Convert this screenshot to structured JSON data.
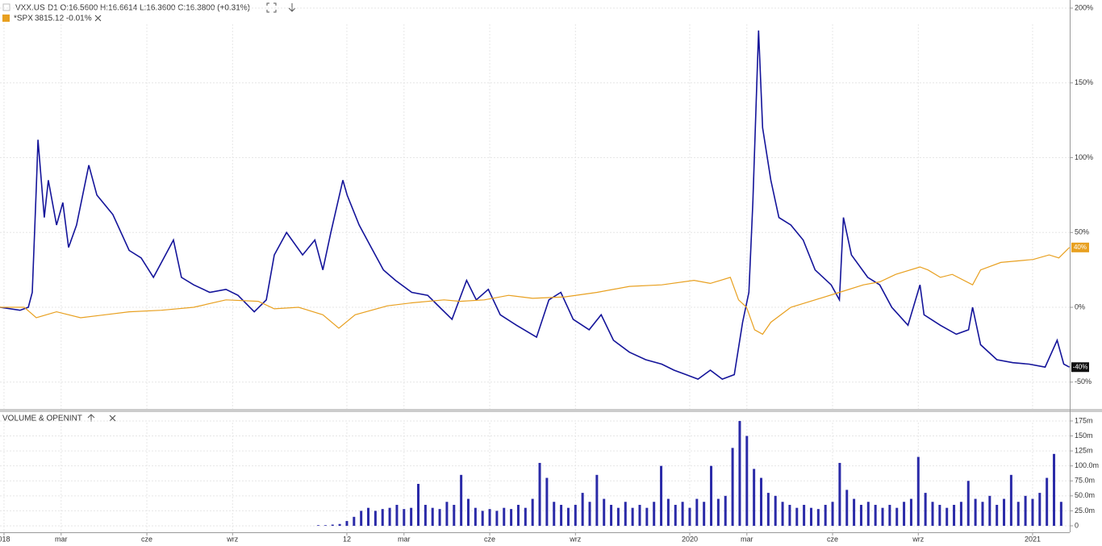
{
  "chart_data": [
    {
      "type": "line",
      "xlim": [
        -0.14,
        37.3
      ],
      "ylim": [
        -67.9,
        205.4
      ],
      "yticks": [
        {
          "value": 200,
          "label": "200%"
        },
        {
          "value": 150,
          "label": "150%"
        },
        {
          "value": 100,
          "label": "100%"
        },
        {
          "value": 50,
          "label": "50%"
        },
        {
          "value": 0,
          "label": "0%"
        },
        {
          "value": -50,
          "label": "-50%"
        }
      ],
      "grid": true,
      "series": [
        {
          "name": "VXX.US",
          "info": "D1  O:16.5600  H:16.6614  L:16.3600  C:16.3800  (+0.31%)",
          "color": "#14149a",
          "end_label": "-40%",
          "x": [
            -0.14,
            0.56,
            0.85,
            0.99,
            1.13,
            1.19,
            1.41,
            1.55,
            1.84,
            2.06,
            2.26,
            2.54,
            2.97,
            3.25,
            3.81,
            4.38,
            4.8,
            5.23,
            5.65,
            5.93,
            6.21,
            6.64,
            7.2,
            7.77,
            8.19,
            8.76,
            9.18,
            9.46,
            9.89,
            10.45,
            10.88,
            11.16,
            11.44,
            11.86,
            12.01,
            12.43,
            12.85,
            13.28,
            13.7,
            14.27,
            14.83,
            15.25,
            15.68,
            16.19,
            16.53,
            16.95,
            17.37,
            17.94,
            18.64,
            19.07,
            19.49,
            19.92,
            20.48,
            20.9,
            21.33,
            21.89,
            22.46,
            23.02,
            23.45,
            23.87,
            24.29,
            24.72,
            25.14,
            25.56,
            25.85,
            26.07,
            26.21,
            26.41,
            26.55,
            26.84,
            27.12,
            27.54,
            27.97,
            28.39,
            28.95,
            29.24,
            29.38,
            29.66,
            30.23,
            30.65,
            31.07,
            31.64,
            32.06,
            32.2,
            32.77,
            33.33,
            33.76,
            33.9,
            34.18,
            34.75,
            35.31,
            35.88,
            36.44,
            36.86,
            37.09,
            37.29
          ],
          "values": [
            0,
            -2,
            0,
            10,
            80,
            112,
            60,
            85,
            55,
            70,
            40,
            55,
            95,
            75,
            62,
            38,
            33,
            20,
            35,
            45,
            20,
            15,
            10,
            12,
            8,
            -3,
            5,
            35,
            50,
            35,
            45,
            25,
            50,
            85,
            75,
            55,
            40,
            25,
            18,
            10,
            8,
            0,
            -8,
            18,
            5,
            12,
            -5,
            -12,
            -20,
            5,
            10,
            -8,
            -15,
            -5,
            -22,
            -30,
            -35,
            -38,
            -42,
            -45,
            -48,
            -42,
            -48,
            -45,
            -10,
            10,
            70,
            185,
            120,
            85,
            60,
            55,
            45,
            25,
            15,
            5,
            60,
            35,
            20,
            15,
            0,
            -12,
            15,
            -5,
            -12,
            -18,
            -15,
            0,
            -25,
            -35,
            -37,
            -38,
            -40,
            -22,
            -38,
            -40
          ]
        },
        {
          "name": "*SPX",
          "info": "3815.12  -0.01%",
          "color": "#e8a020",
          "end_label": "40%",
          "x": [
            -0.14,
            0.71,
            1.13,
            1.84,
            2.68,
            3.53,
            4.38,
            5.51,
            6.64,
            7.77,
            8.9,
            9.46,
            10.31,
            11.16,
            11.72,
            12.29,
            13.42,
            14.27,
            15.4,
            15.96,
            16.81,
            17.66,
            18.5,
            19.63,
            20.76,
            21.89,
            23.02,
            24.15,
            24.72,
            25.42,
            25.71,
            25.99,
            26.27,
            26.55,
            26.84,
            27.54,
            28.39,
            29.24,
            30.08,
            30.65,
            31.21,
            32.06,
            32.34,
            32.77,
            33.19,
            33.9,
            34.18,
            34.89,
            36.02,
            36.58,
            36.92,
            37.29
          ],
          "values": [
            0,
            0,
            -7,
            -3,
            -7,
            -5,
            -3,
            -2,
            0,
            5,
            4,
            -1,
            0,
            -5,
            -14,
            -5,
            1,
            3,
            5,
            4,
            5,
            8,
            6,
            7,
            10,
            14,
            15,
            18,
            16,
            20,
            5,
            0,
            -15,
            -18,
            -10,
            0,
            5,
            10,
            15,
            17,
            22,
            27,
            25,
            20,
            22,
            15,
            25,
            30,
            32,
            35,
            33,
            40
          ]
        }
      ]
    },
    {
      "type": "bar",
      "title": "VOLUME & OPENINT",
      "color": "#2a2aa8",
      "xlim": [
        -0.14,
        37.3
      ],
      "ylim": [
        -10.8,
        188.4
      ],
      "xticks": [
        {
          "value": 0,
          "label": "018"
        },
        {
          "value": 2,
          "label": "mar"
        },
        {
          "value": 5,
          "label": "cze"
        },
        {
          "value": 8,
          "label": "wrz"
        },
        12,
        {
          "value": 14,
          "label": "mar"
        },
        {
          "value": 17,
          "label": "cze"
        },
        {
          "value": 20,
          "label": "wrz"
        },
        {
          "value": 24,
          "label": "2020"
        },
        {
          "value": 26,
          "label": "mar"
        },
        {
          "value": 29,
          "label": "cze"
        },
        {
          "value": 32,
          "label": "wrz"
        },
        {
          "value": 36,
          "label": "2021"
        }
      ],
      "yticks": [
        {
          "value": 175,
          "label": "175m"
        },
        {
          "value": 150,
          "label": "150m"
        },
        {
          "value": 125,
          "label": "125m"
        },
        {
          "value": 100,
          "label": "100.0m"
        },
        {
          "value": 75,
          "label": "75.0m"
        },
        {
          "value": 50,
          "label": "50.0m"
        },
        {
          "value": 25,
          "label": "25.0m"
        },
        0
      ],
      "grid": true,
      "x": [
        11,
        11.25,
        11.5,
        11.75,
        12,
        12.25,
        12.5,
        12.75,
        13,
        13.25,
        13.5,
        13.75,
        14,
        14.25,
        14.5,
        14.75,
        15,
        15.25,
        15.5,
        15.75,
        16,
        16.25,
        16.5,
        16.75,
        17,
        17.25,
        17.5,
        17.75,
        18,
        18.25,
        18.5,
        18.75,
        19,
        19.25,
        19.5,
        19.75,
        20,
        20.25,
        20.5,
        20.75,
        21,
        21.25,
        21.5,
        21.75,
        22,
        22.25,
        22.5,
        22.75,
        23,
        23.25,
        23.5,
        23.75,
        24,
        24.25,
        24.5,
        24.75,
        25,
        25.25,
        25.5,
        25.75,
        26,
        26.25,
        26.5,
        26.75,
        27,
        27.25,
        27.5,
        27.75,
        28,
        28.25,
        28.5,
        28.75,
        29,
        29.25,
        29.5,
        29.75,
        30,
        30.25,
        30.5,
        30.75,
        31,
        31.25,
        31.5,
        31.75,
        32,
        32.25,
        32.5,
        32.75,
        33,
        33.25,
        33.5,
        33.75,
        34,
        34.25,
        34.5,
        34.75,
        35,
        35.25,
        35.5,
        35.75,
        36,
        36.25,
        36.5,
        36.75,
        37
      ],
      "values": [
        1,
        1,
        2,
        3,
        8,
        15,
        25,
        30,
        25,
        28,
        30,
        35,
        28,
        30,
        70,
        35,
        30,
        28,
        40,
        35,
        85,
        45,
        30,
        25,
        28,
        25,
        30,
        28,
        35,
        30,
        45,
        105,
        80,
        40,
        35,
        30,
        35,
        55,
        40,
        85,
        45,
        35,
        30,
        40,
        30,
        35,
        30,
        40,
        100,
        45,
        35,
        40,
        30,
        45,
        40,
        100,
        45,
        50,
        130,
        175,
        150,
        95,
        80,
        55,
        50,
        40,
        35,
        30,
        35,
        30,
        28,
        35,
        40,
        105,
        60,
        45,
        35,
        40,
        35,
        30,
        35,
        30,
        40,
        45,
        115,
        55,
        40,
        35,
        30,
        35,
        40,
        75,
        45,
        40,
        50,
        35,
        45,
        85,
        40,
        50,
        45,
        55,
        80,
        120,
        40
      ]
    }
  ]
}
